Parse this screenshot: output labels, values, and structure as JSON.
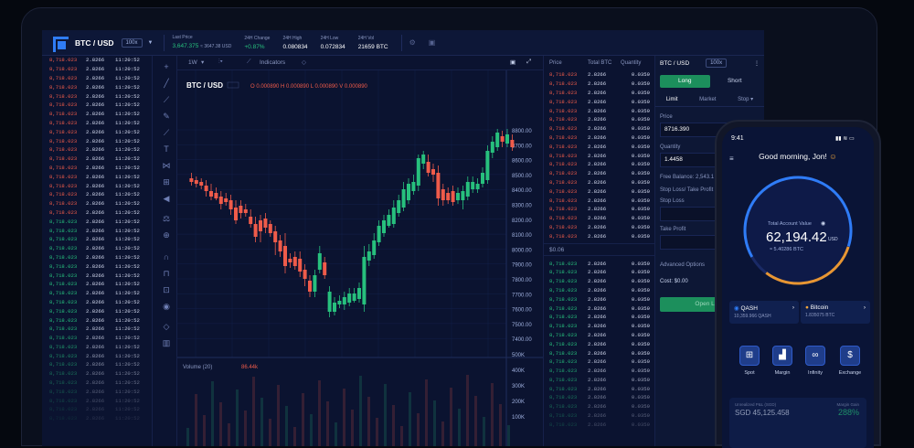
{
  "header": {
    "pair": "BTC / USD",
    "leverage": "100x",
    "stats": [
      {
        "label": "Last Price",
        "value": "3,647.375",
        "sub": "≈ 3647.38 USD"
      },
      {
        "label": "24H Change",
        "value": "+0.87%"
      },
      {
        "label": "24H High",
        "value": "0.080834"
      },
      {
        "label": "24H Low",
        "value": "0.072834"
      },
      {
        "label": "24H Vol",
        "value": "21659 BTC"
      }
    ]
  },
  "trades": {
    "price": "8,718.023",
    "amount": "2.8266",
    "time": "11:20:52"
  },
  "toolbar": {
    "timeframe": "1W",
    "indicators": "Indicators"
  },
  "chart": {
    "pair": "BTC / USD",
    "ohlc": "O 0.000890   H 0.000890   L 0.000890   V 0.000890",
    "volume_label": "Volume (20)",
    "volume_value": "86.44k",
    "price_ticks": [
      "8800.00",
      "8700.00",
      "8600.00",
      "8500.00",
      "8400.00",
      "8300.00",
      "8200.00",
      "8100.00",
      "8000.00",
      "7900.00",
      "7800.00",
      "7700.00",
      "7600.00",
      "7500.00",
      "7400.00"
    ],
    "volume_ticks": [
      "500K",
      "400K",
      "300K",
      "200K",
      "100K"
    ]
  },
  "orderbook": {
    "headers": [
      "Price",
      "Total BTC",
      "Quantity"
    ],
    "price": "8,718.023",
    "total": "2.8266",
    "qty": "0.0359",
    "spread": "$0.06"
  },
  "order": {
    "pair": "BTC / USD",
    "leverage": "100x",
    "long": "Long",
    "short": "Short",
    "tabs": [
      "Limit",
      "Market",
      "Stop ▾"
    ],
    "price_label": "Price",
    "price": "8716.390",
    "qty_label": "Quantity",
    "qty": "1.4458",
    "balance": "Free Balance: 2,543.1",
    "stop_label": "Stop Loss/ Take Profit",
    "stop_loss": "Stop Loss",
    "take_profit": "Take Profit",
    "advanced": "Advanced Options",
    "cost": "Cost:  $0.00",
    "open": "Open Long"
  },
  "phone": {
    "time": "9:41",
    "greeting": "Good morning, Jon! ",
    "balance_label": "Total Account Value",
    "balance": "62,194.42",
    "balance_unit": "USD",
    "balance_btc": "≈ 5.40286 BTC",
    "assets": [
      {
        "name": "QASH",
        "amount": "10,359.966 QASH"
      },
      {
        "name": "Bitcoin",
        "amount": "1.835075 BTC"
      }
    ],
    "actions": [
      "Spot",
      "Margin",
      "Infinity",
      "Exchange"
    ],
    "bottom_label": "Unrealized P&L (SGD)",
    "bottom_value": "SGD 45,125.458",
    "bottom_label2": "Margin Gain",
    "bottom_value2": "288%"
  },
  "colors": {
    "up": "#27c07d",
    "down": "#ef5b4a",
    "accent": "#2f7cf6"
  }
}
